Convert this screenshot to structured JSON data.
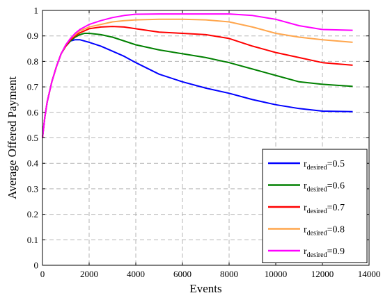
{
  "chart_data": {
    "type": "line",
    "title": "",
    "xlabel": "Events",
    "ylabel": "Average Offered Payment",
    "xlim": [
      0,
      14000
    ],
    "ylim": [
      0,
      1
    ],
    "x_ticks": [
      0,
      2000,
      4000,
      6000,
      8000,
      10000,
      12000,
      14000
    ],
    "y_ticks": [
      0,
      0.1,
      0.2,
      0.3,
      0.4,
      0.5,
      0.6,
      0.7,
      0.8,
      0.9,
      1
    ],
    "grid": true,
    "legend_position": "bottom-right",
    "series": [
      {
        "legend_main": "r",
        "legend_sub": "desired",
        "legend_value": "=0.5",
        "color": "#0000ff",
        "x": [
          0,
          100,
          200,
          400,
          600,
          800,
          1000,
          1200,
          1400,
          1600,
          2000,
          2500,
          3000,
          3500,
          4000,
          5000,
          6000,
          7000,
          8000,
          9000,
          10000,
          11000,
          12000,
          13300
        ],
        "y": [
          0.5,
          0.58,
          0.64,
          0.72,
          0.78,
          0.83,
          0.86,
          0.88,
          0.885,
          0.885,
          0.875,
          0.86,
          0.84,
          0.82,
          0.795,
          0.75,
          0.72,
          0.695,
          0.675,
          0.65,
          0.63,
          0.615,
          0.605,
          0.603
        ]
      },
      {
        "legend_main": "r",
        "legend_sub": "desired",
        "legend_value": "=0.6",
        "color": "#008000",
        "x": [
          0,
          100,
          200,
          400,
          600,
          800,
          1000,
          1200,
          1400,
          1600,
          1800,
          2000,
          2500,
          3000,
          3500,
          4000,
          5000,
          6000,
          7000,
          8000,
          9000,
          10000,
          11000,
          12000,
          13300
        ],
        "y": [
          0.5,
          0.58,
          0.64,
          0.72,
          0.78,
          0.83,
          0.86,
          0.88,
          0.895,
          0.905,
          0.91,
          0.91,
          0.905,
          0.895,
          0.88,
          0.865,
          0.845,
          0.83,
          0.815,
          0.795,
          0.77,
          0.745,
          0.72,
          0.71,
          0.702
        ]
      },
      {
        "legend_main": "r",
        "legend_sub": "desired",
        "legend_value": "=0.7",
        "color": "#ff0000",
        "x": [
          0,
          100,
          200,
          400,
          600,
          800,
          1000,
          1200,
          1400,
          1600,
          1800,
          2000,
          2500,
          3000,
          3500,
          4000,
          5000,
          6000,
          7000,
          8000,
          9000,
          10000,
          11000,
          12000,
          13300
        ],
        "y": [
          0.5,
          0.58,
          0.64,
          0.72,
          0.78,
          0.83,
          0.86,
          0.885,
          0.9,
          0.912,
          0.92,
          0.928,
          0.935,
          0.937,
          0.935,
          0.928,
          0.915,
          0.91,
          0.905,
          0.89,
          0.86,
          0.835,
          0.815,
          0.795,
          0.785
        ]
      },
      {
        "legend_main": "r",
        "legend_sub": "desired",
        "legend_value": "=0.8",
        "color": "#ffa64d",
        "x": [
          0,
          100,
          200,
          400,
          600,
          800,
          1000,
          1200,
          1400,
          1600,
          2000,
          2500,
          3000,
          3500,
          4000,
          5000,
          6000,
          7000,
          8000,
          9000,
          10000,
          11000,
          12000,
          13300
        ],
        "y": [
          0.5,
          0.58,
          0.64,
          0.72,
          0.78,
          0.83,
          0.865,
          0.89,
          0.905,
          0.92,
          0.935,
          0.945,
          0.955,
          0.96,
          0.963,
          0.965,
          0.965,
          0.963,
          0.955,
          0.935,
          0.91,
          0.895,
          0.885,
          0.875
        ]
      },
      {
        "legend_main": "r",
        "legend_sub": "desired",
        "legend_value": "=0.9",
        "color": "#ff00ff",
        "x": [
          0,
          100,
          200,
          400,
          600,
          800,
          1000,
          1200,
          1400,
          1600,
          2000,
          2500,
          3000,
          3500,
          4000,
          5000,
          6000,
          7000,
          8000,
          9000,
          10000,
          11000,
          12000,
          13300
        ],
        "y": [
          0.5,
          0.58,
          0.64,
          0.72,
          0.78,
          0.83,
          0.865,
          0.89,
          0.91,
          0.925,
          0.945,
          0.96,
          0.972,
          0.98,
          0.985,
          0.986,
          0.986,
          0.986,
          0.986,
          0.98,
          0.965,
          0.94,
          0.925,
          0.922
        ]
      }
    ]
  }
}
